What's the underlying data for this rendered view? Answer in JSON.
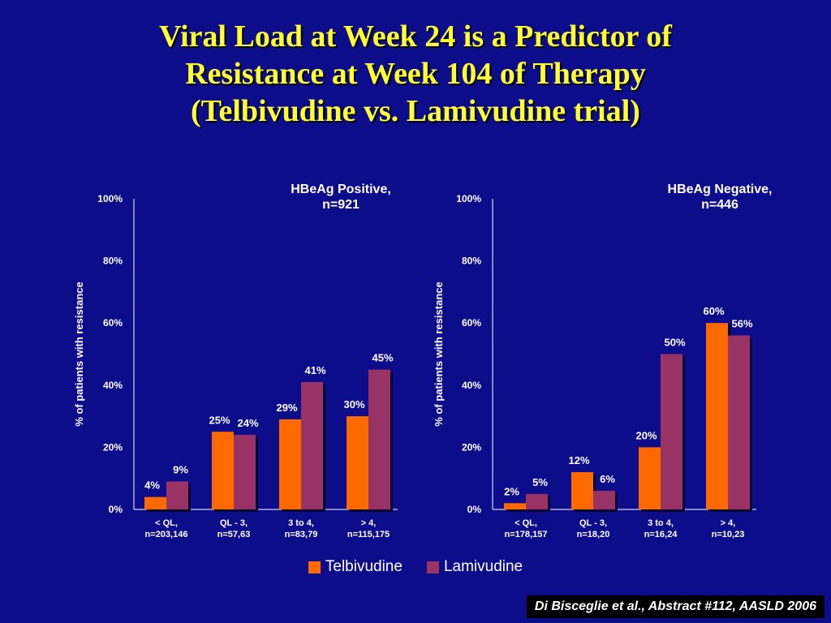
{
  "title": {
    "line1": "Viral Load at Week 24 is a Predictor of",
    "line2": "Resistance at Week 104 of Therapy",
    "line3": "(Telbivudine vs. Lamivudine trial)"
  },
  "colors": {
    "telbivudine": "#ff6a00",
    "lamivudine": "#993366",
    "background": "#0d0d8c",
    "title": "#ffff33"
  },
  "legend": [
    {
      "name": "Telbivudine",
      "color": "#ff6a00"
    },
    {
      "name": "Lamivudine",
      "color": "#993366"
    }
  ],
  "citation": "Di Bisceglie et al., Abstract #112, AASLD 2006",
  "chart_data": [
    {
      "type": "bar",
      "title": "HBeAg Positive,\nn=921",
      "ylabel": "% of patients with resistance",
      "ylim": [
        0,
        100
      ],
      "yticks": [
        "0%",
        "20%",
        "40%",
        "60%",
        "80%",
        "100%"
      ],
      "categories": [
        "< QL,\nn=203,146",
        "QL - 3,\nn=57,63",
        "3 to 4,\nn=83,79",
        "> 4,\nn=115,175"
      ],
      "series": [
        {
          "name": "Telbivudine",
          "values": [
            4,
            25,
            29,
            30
          ],
          "labels": [
            "4%",
            "25%",
            "29%",
            "30%"
          ]
        },
        {
          "name": "Lamivudine",
          "values": [
            9,
            24,
            41,
            45
          ],
          "labels": [
            "9%",
            "24%",
            "41%",
            "45%"
          ]
        }
      ]
    },
    {
      "type": "bar",
      "title": "HBeAg Negative,\nn=446",
      "ylabel": "% of patients with resistance",
      "ylim": [
        0,
        100
      ],
      "yticks": [
        "0%",
        "20%",
        "40%",
        "60%",
        "80%",
        "100%"
      ],
      "categories": [
        "< QL,\nn=178,157",
        "QL - 3,\nn=18,20",
        "3 to 4,\nn=16,24",
        "> 4,\nn=10,23"
      ],
      "series": [
        {
          "name": "Telbivudine",
          "values": [
            2,
            12,
            20,
            60
          ],
          "labels": [
            "2%",
            "12%",
            "20%",
            "60%"
          ]
        },
        {
          "name": "Lamivudine",
          "values": [
            5,
            6,
            50,
            56
          ],
          "labels": [
            "5%",
            "6%",
            "50%",
            "56%"
          ]
        }
      ]
    }
  ]
}
